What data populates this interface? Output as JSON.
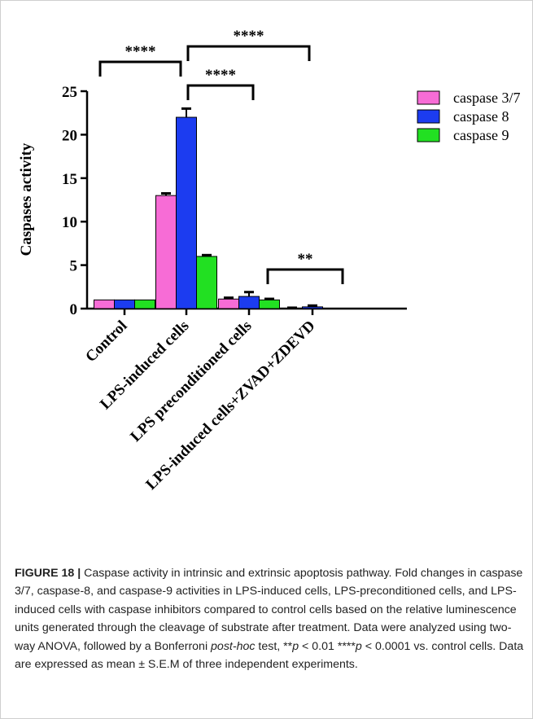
{
  "chart_data": {
    "type": "bar",
    "ylabel": "Caspases activity",
    "ylim": [
      0,
      25
    ],
    "yticks": [
      "0",
      "5",
      "10",
      "15",
      "20",
      "25"
    ],
    "categories": [
      "Control",
      "LPS-induced cells",
      "LPS preconditioned cells",
      "LPS-induced cells+ZVAD+ZDEVD"
    ],
    "series": [
      {
        "name": "caspase 3/7",
        "color": "#f76cd6",
        "values": [
          1.0,
          13.0,
          1.1,
          0.05
        ],
        "errors": [
          0,
          0.25,
          0.15,
          0.05
        ]
      },
      {
        "name": "caspase 8",
        "color": "#1c3cf0",
        "values": [
          1.0,
          22.0,
          1.4,
          0.2
        ],
        "errors": [
          0,
          1.0,
          0.5,
          0.15
        ]
      },
      {
        "name": "caspase 9",
        "color": "#22e022",
        "values": [
          1.0,
          6.0,
          1.0,
          0.0
        ],
        "errors": [
          0,
          0.15,
          0.12,
          0
        ]
      }
    ],
    "legend": "top-right",
    "annotations": [
      "****",
      "****",
      "****",
      "**"
    ]
  },
  "caption": {
    "label": "FIGURE 18 |",
    "seg1": " Caspase activity in intrinsic and extrinsic apoptosis pathway. Fold changes in caspase 3/7, caspase-8, and caspase-9 activities in LPS-induced cells, LPS-preconditioned cells, and LPS-induced cells with caspase inhibitors compared to control cells based on the relative luminescence units generated through the cleavage of substrate after treatment. Data were analyzed using two-way ANOVA, followed by a Bonferroni ",
    "italic1": "post-hoc",
    "seg2": " test, **",
    "italic2": "p",
    "seg3": " < 0.01 ****",
    "italic3": "p",
    "seg4": " < 0.0001 vs. control cells. Data are expressed as mean ± S.E.M of three independent experiments."
  }
}
